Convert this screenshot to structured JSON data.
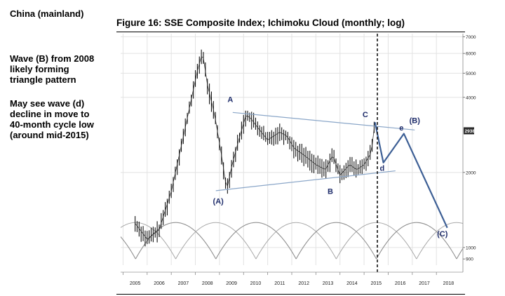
{
  "sidebar": {
    "title": "China (mainland)",
    "note1": "Wave (B) from 2008\nlikely forming\ntriangle pattern",
    "note2": "May see wave (d)\ndecline in move to\n40-month cycle low\n(around mid-2015)"
  },
  "chart_data": {
    "type": "line",
    "title": "Figure 16: SSE Composite Index; Ichimoku Cloud (monthly; log)",
    "x_tick_labels": [
      "2005",
      "2006",
      "2007",
      "2008",
      "2009",
      "2010",
      "2011",
      "2012",
      "2013",
      "2014",
      "2015",
      "2016",
      "2017",
      "2018"
    ],
    "y_tick_labels": [
      "7000",
      "6000",
      "5000",
      "4000",
      "2000",
      "1000",
      "900"
    ],
    "y_scale": "log",
    "ylim": [
      850,
      7200
    ],
    "xlim": [
      2004.4,
      2018.6
    ],
    "current_value_label": "2938",
    "price_monthly_approx": {
      "x": [
        2005.0,
        2005.5,
        2006.0,
        2006.5,
        2007.0,
        2007.3,
        2007.6,
        2007.8,
        2008.0,
        2008.3,
        2008.6,
        2008.8,
        2009.0,
        2009.3,
        2009.6,
        2009.8,
        2010.0,
        2010.5,
        2011.0,
        2011.3,
        2011.6,
        2012.0,
        2012.5,
        2012.9,
        2013.2,
        2013.5,
        2013.9,
        2014.2,
        2014.5,
        2014.8,
        2014.95
      ],
      "y": [
        1250,
        1080,
        1180,
        1680,
        2780,
        3800,
        5200,
        6050,
        4500,
        3400,
        2300,
        1700,
        2100,
        2700,
        3400,
        3300,
        3100,
        2700,
        2900,
        2800,
        2500,
        2350,
        2150,
        2050,
        2350,
        1950,
        2150,
        2050,
        2150,
        2400,
        3200
      ]
    },
    "triangle_upper": {
      "x": [
        2009.05,
        2016.6
      ],
      "y": [
        3480,
        2960
      ]
    },
    "triangle_lower": {
      "x": [
        2008.35,
        2015.8
      ],
      "y": [
        1690,
        2030
      ]
    },
    "wave_projection": {
      "x": [
        2014.95,
        2015.3,
        2016.15,
        2017.95
      ],
      "y": [
        3180,
        2190,
        2860,
        1200
      ]
    },
    "cycle_low_line_x": 2015.05,
    "cycle_period_years": 3.33,
    "cycle_low_x_anchor": 2008.35,
    "annotations": [
      {
        "text": "A",
        "x": 2008.95,
        "y": 3830
      },
      {
        "text": "(A)",
        "x": 2008.45,
        "y": 1500
      },
      {
        "text": "B",
        "x": 2013.1,
        "y": 1640
      },
      {
        "text": "C",
        "x": 2014.55,
        "y": 3330
      },
      {
        "text": "d",
        "x": 2015.25,
        "y": 2030
      },
      {
        "text": "e",
        "x": 2016.05,
        "y": 2950
      },
      {
        "text": "(B)",
        "x": 2016.6,
        "y": 3150
      },
      {
        "text": "(C)",
        "x": 2017.75,
        "y": 1110
      }
    ],
    "grid": true,
    "legend": "none"
  }
}
